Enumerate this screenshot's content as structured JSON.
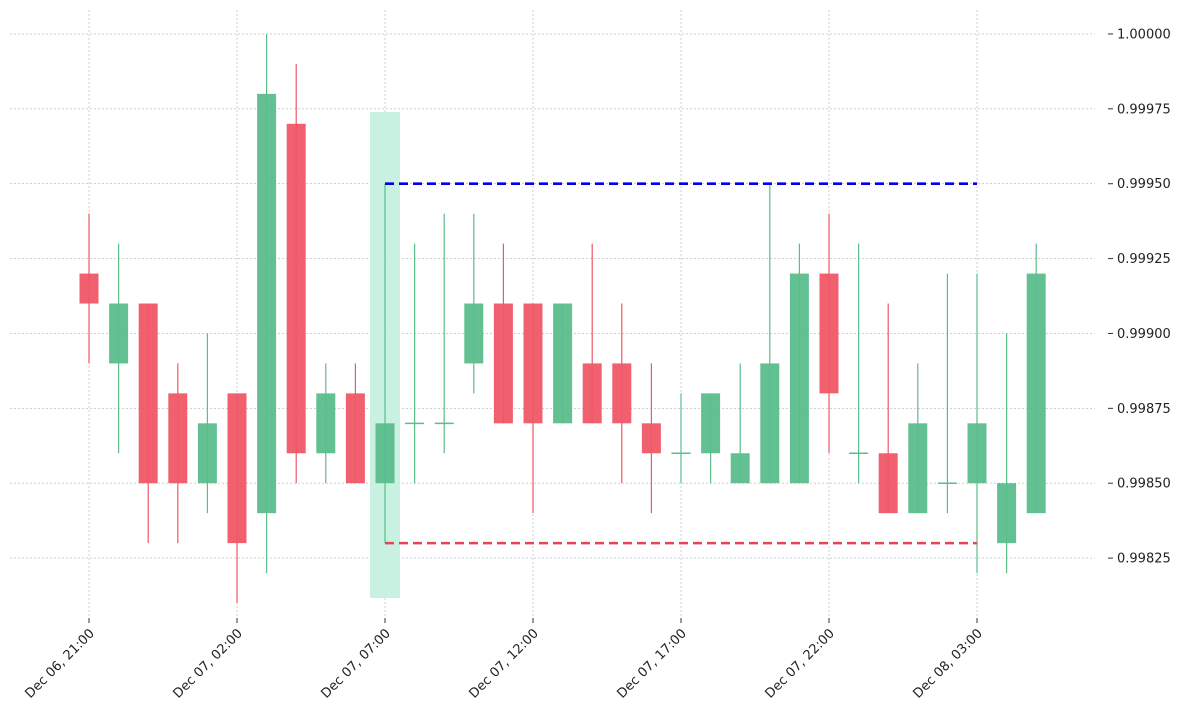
{
  "chart_data": {
    "type": "candlestick",
    "x_tick_labels": [
      "Dec 06, 21:00",
      "Dec 07, 02:00",
      "Dec 07, 07:00",
      "Dec 07, 12:00",
      "Dec 07, 17:00",
      "Dec 07, 22:00",
      "Dec 08, 03:00"
    ],
    "x_tick_index": [
      0,
      5,
      10,
      15,
      20,
      25,
      30
    ],
    "y_tick_labels": [
      "0.99825",
      "0.99850",
      "0.99875",
      "0.99900",
      "0.99925",
      "0.99950",
      "0.99975",
      "1.00000"
    ],
    "y_ticks": [
      0.99825,
      0.9985,
      0.99875,
      0.999,
      0.99925,
      0.9995,
      0.99975,
      1.0
    ],
    "ylim": [
      0.99805,
      1.00008
    ],
    "y_axis_side": "right",
    "grid": true,
    "candles": [
      {
        "o": 0.9992,
        "h": 0.9994,
        "l": 0.9989,
        "c": 0.9991
      },
      {
        "o": 0.9989,
        "h": 0.9993,
        "l": 0.9986,
        "c": 0.9991
      },
      {
        "o": 0.9991,
        "h": 0.9991,
        "l": 0.9983,
        "c": 0.9985
      },
      {
        "o": 0.9988,
        "h": 0.9989,
        "l": 0.9983,
        "c": 0.9985
      },
      {
        "o": 0.9985,
        "h": 0.999,
        "l": 0.9984,
        "c": 0.9987
      },
      {
        "o": 0.9988,
        "h": 0.9988,
        "l": 0.9981,
        "c": 0.9983
      },
      {
        "o": 0.9984,
        "h": 1.0,
        "l": 0.9982,
        "c": 0.9998
      },
      {
        "o": 0.9997,
        "h": 0.9999,
        "l": 0.9985,
        "c": 0.9986
      },
      {
        "o": 0.9986,
        "h": 0.9989,
        "l": 0.9985,
        "c": 0.9988
      },
      {
        "o": 0.9988,
        "h": 0.9989,
        "l": 0.9985,
        "c": 0.9985
      },
      {
        "o": 0.9985,
        "h": 0.9995,
        "l": 0.9983,
        "c": 0.9987
      },
      {
        "o": 0.9987,
        "h": 0.9993,
        "l": 0.9985,
        "c": 0.9987
      },
      {
        "o": 0.9987,
        "h": 0.9994,
        "l": 0.9986,
        "c": 0.9987
      },
      {
        "o": 0.9989,
        "h": 0.9994,
        "l": 0.9988,
        "c": 0.9991
      },
      {
        "o": 0.9991,
        "h": 0.9993,
        "l": 0.9987,
        "c": 0.9987
      },
      {
        "o": 0.9991,
        "h": 0.9991,
        "l": 0.9984,
        "c": 0.9987
      },
      {
        "o": 0.9987,
        "h": 0.9991,
        "l": 0.9987,
        "c": 0.9991
      },
      {
        "o": 0.9989,
        "h": 0.9993,
        "l": 0.9987,
        "c": 0.9987
      },
      {
        "o": 0.9989,
        "h": 0.9991,
        "l": 0.9985,
        "c": 0.9987
      },
      {
        "o": 0.9987,
        "h": 0.9989,
        "l": 0.9984,
        "c": 0.9986
      },
      {
        "o": 0.9986,
        "h": 0.9988,
        "l": 0.9985,
        "c": 0.9986
      },
      {
        "o": 0.9986,
        "h": 0.9988,
        "l": 0.9985,
        "c": 0.9988
      },
      {
        "o": 0.9985,
        "h": 0.9989,
        "l": 0.9985,
        "c": 0.9986
      },
      {
        "o": 0.9985,
        "h": 0.9995,
        "l": 0.9985,
        "c": 0.9989
      },
      {
        "o": 0.9985,
        "h": 0.9993,
        "l": 0.9985,
        "c": 0.9992
      },
      {
        "o": 0.9992,
        "h": 0.9994,
        "l": 0.9986,
        "c": 0.9988
      },
      {
        "o": 0.9986,
        "h": 0.9993,
        "l": 0.9985,
        "c": 0.9986
      },
      {
        "o": 0.9986,
        "h": 0.9991,
        "l": 0.9984,
        "c": 0.9984
      },
      {
        "o": 0.9984,
        "h": 0.9989,
        "l": 0.9984,
        "c": 0.9987
      },
      {
        "o": 0.9985,
        "h": 0.9992,
        "l": 0.9984,
        "c": 0.9985
      },
      {
        "o": 0.9985,
        "h": 0.9992,
        "l": 0.9982,
        "c": 0.9987
      },
      {
        "o": 0.9983,
        "h": 0.999,
        "l": 0.9982,
        "c": 0.9985
      },
      {
        "o": 0.9984,
        "h": 0.9993,
        "l": 0.9984,
        "c": 0.9992
      }
    ],
    "highlight": {
      "index": 10,
      "color": "#c6f0df"
    },
    "resistance_line": {
      "value": 0.9995,
      "from_index": 10,
      "to_index": 30,
      "color": "#0000ee",
      "style": "dashed"
    },
    "support_line": {
      "value": 0.9983,
      "from_index": 10,
      "to_index": 30,
      "color": "#e8434f",
      "style": "dashed"
    },
    "colors": {
      "up": "#5bbd8c",
      "down": "#ef5767",
      "background": "#ffffff",
      "grid": "#b5b5b5"
    }
  }
}
